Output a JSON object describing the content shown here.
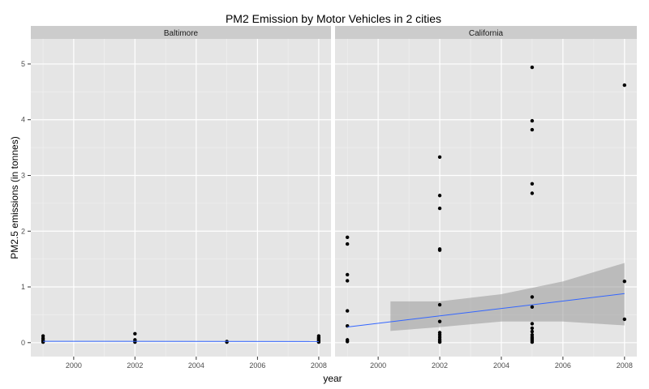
{
  "chart_data": {
    "type": "scatter",
    "title": "PM2 Emission by Motor Vehicles in 2 cities",
    "xlabel": "year",
    "ylabel": "PM2.5 emissions (in tonnes)",
    "xlim": [
      1998.6,
      2008.4
    ],
    "ylim": [
      -0.25,
      5.45
    ],
    "x_ticks": [
      2000,
      2002,
      2004,
      2006,
      2008
    ],
    "y_ticks": [
      0,
      1,
      2,
      3,
      4,
      5
    ],
    "x_tick_labels": [
      "2000",
      "2002",
      "2004",
      "2006",
      "2008"
    ],
    "y_tick_labels": [
      "0",
      "1",
      "2",
      "3",
      "4",
      "5"
    ],
    "grid": true,
    "colors": {
      "panel_bg": "#E5E5E5",
      "strip_bg": "#CCCCCC",
      "grid_major": "#FFFFFF",
      "grid_minor": "#F2F2F2",
      "points": "#000000",
      "fit_line": "#3366FF",
      "confidence_band": "#999999"
    },
    "panels": [
      {
        "name": "Baltimore",
        "points": [
          [
            1999,
            0.01
          ],
          [
            1999,
            0.03
          ],
          [
            1999,
            0.05
          ],
          [
            1999,
            0.08
          ],
          [
            1999,
            0.12
          ],
          [
            2002,
            0.01
          ],
          [
            2002,
            0.03
          ],
          [
            2002,
            0.05
          ],
          [
            2002,
            0.16
          ],
          [
            2005,
            0.01
          ],
          [
            2005,
            0.02
          ],
          [
            2008,
            0.01
          ],
          [
            2008,
            0.03
          ],
          [
            2008,
            0.05
          ],
          [
            2008,
            0.07
          ],
          [
            2008,
            0.09
          ],
          [
            2008,
            0.12
          ]
        ],
        "fit_line": {
          "x": [
            1999,
            2008
          ],
          "y": [
            0.025,
            0.02
          ]
        },
        "band": null
      },
      {
        "name": "California",
        "points": [
          [
            1999,
            0.02
          ],
          [
            1999,
            0.05
          ],
          [
            1999,
            0.3
          ],
          [
            1999,
            0.57
          ],
          [
            1999,
            1.11
          ],
          [
            1999,
            1.22
          ],
          [
            1999,
            1.77
          ],
          [
            1999,
            1.89
          ],
          [
            2002,
            0.01
          ],
          [
            2002,
            0.03
          ],
          [
            2002,
            0.06
          ],
          [
            2002,
            0.1
          ],
          [
            2002,
            0.14
          ],
          [
            2002,
            0.18
          ],
          [
            2002,
            0.38
          ],
          [
            2002,
            0.68
          ],
          [
            2002,
            1.66
          ],
          [
            2002,
            1.68
          ],
          [
            2002,
            2.41
          ],
          [
            2002,
            2.64
          ],
          [
            2002,
            3.33
          ],
          [
            2005,
            0.01
          ],
          [
            2005,
            0.04
          ],
          [
            2005,
            0.07
          ],
          [
            2005,
            0.1
          ],
          [
            2005,
            0.14
          ],
          [
            2005,
            0.2
          ],
          [
            2005,
            0.26
          ],
          [
            2005,
            0.34
          ],
          [
            2005,
            0.64
          ],
          [
            2005,
            0.82
          ],
          [
            2005,
            2.68
          ],
          [
            2005,
            2.85
          ],
          [
            2005,
            3.82
          ],
          [
            2005,
            3.98
          ],
          [
            2005,
            4.94
          ],
          [
            2008,
            0.42
          ],
          [
            2008,
            1.1
          ],
          [
            2008,
            4.62
          ]
        ],
        "fit_line": {
          "x": [
            1999,
            2008
          ],
          "y": [
            0.28,
            0.88
          ]
        },
        "band": {
          "x": [
            2000.4,
            2002,
            2004,
            2006,
            2008
          ],
          "upper": [
            0.74,
            0.74,
            0.87,
            1.1,
            1.43
          ],
          "lower": [
            0.21,
            0.28,
            0.38,
            0.38,
            0.31
          ]
        }
      }
    ]
  }
}
